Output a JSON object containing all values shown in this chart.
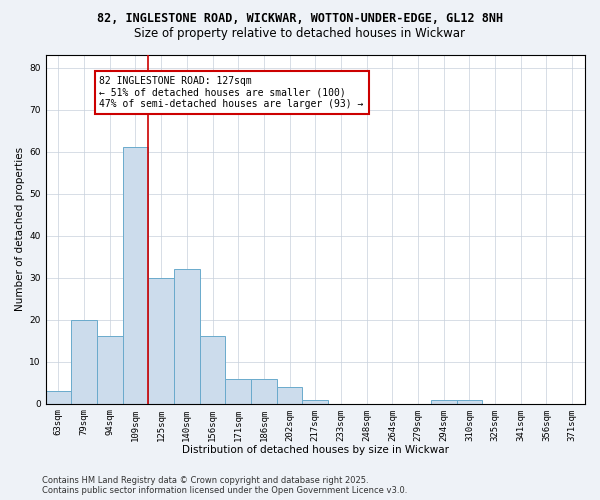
{
  "title_line1": "82, INGLESTONE ROAD, WICKWAR, WOTTON-UNDER-EDGE, GL12 8NH",
  "title_line2": "Size of property relative to detached houses in Wickwar",
  "xlabel": "Distribution of detached houses by size in Wickwar",
  "ylabel": "Number of detached properties",
  "bar_color": "#ccdcec",
  "bar_edge_color": "#6aaacc",
  "bin_labels": [
    "63sqm",
    "79sqm",
    "94sqm",
    "109sqm",
    "125sqm",
    "140sqm",
    "156sqm",
    "171sqm",
    "186sqm",
    "202sqm",
    "217sqm",
    "233sqm",
    "248sqm",
    "264sqm",
    "279sqm",
    "294sqm",
    "310sqm",
    "325sqm",
    "341sqm",
    "356sqm",
    "371sqm"
  ],
  "bar_values": [
    3,
    20,
    16,
    61,
    30,
    32,
    16,
    6,
    6,
    4,
    1,
    0,
    0,
    0,
    0,
    1,
    1,
    0,
    0,
    0,
    0
  ],
  "red_line_bin_index": 3.5,
  "annotation_text": "82 INGLESTONE ROAD: 127sqm\n← 51% of detached houses are smaller (100)\n47% of semi-detached houses are larger (93) →",
  "annotation_box_color": "#ffffff",
  "annotation_border_color": "#cc0000",
  "ylim": [
    0,
    83
  ],
  "yticks": [
    0,
    10,
    20,
    30,
    40,
    50,
    60,
    70,
    80
  ],
  "footer_line1": "Contains HM Land Registry data © Crown copyright and database right 2025.",
  "footer_line2": "Contains public sector information licensed under the Open Government Licence v3.0.",
  "background_color": "#eef2f7",
  "plot_background_color": "#ffffff",
  "grid_color": "#c8d0dc",
  "title_fontsize": 8.5,
  "subtitle_fontsize": 8.5,
  "annotation_fontsize": 7,
  "footer_fontsize": 6,
  "axis_label_fontsize": 7.5,
  "tick_fontsize": 6.5
}
